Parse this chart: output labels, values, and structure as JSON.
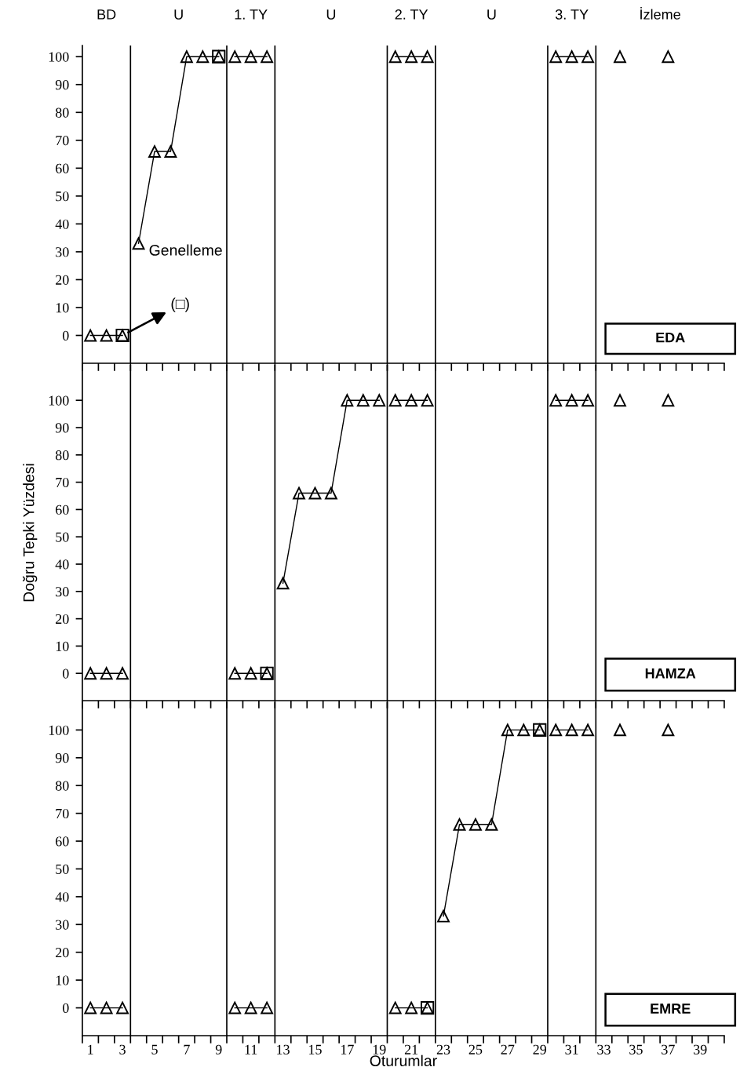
{
  "chart_data": [
    {
      "type": "line",
      "title": "EDA",
      "xlim": [
        0.5,
        40.5
      ],
      "ylim": [
        -10,
        104
      ],
      "tick_labels": "y",
      "xticks": [
        {
          "value": 0.5,
          "label": null
        },
        {
          "value": 1.5,
          "label": null
        },
        {
          "value": 2.5,
          "label": null
        },
        {
          "value": 3.5,
          "label": null
        },
        {
          "value": 4.5,
          "label": null
        },
        {
          "value": 5.5,
          "label": null
        },
        {
          "value": 6.5,
          "label": null
        },
        {
          "value": 7.5,
          "label": null
        },
        {
          "value": 8.5,
          "label": null
        },
        {
          "value": 9.5,
          "label": null
        },
        {
          "value": 10.5,
          "label": null
        },
        {
          "value": 11.5,
          "label": null
        },
        {
          "value": 12.5,
          "label": null
        },
        {
          "value": 13.5,
          "label": null
        },
        {
          "value": 14.5,
          "label": null
        },
        {
          "value": 15.5,
          "label": null
        },
        {
          "value": 16.5,
          "label": null
        },
        {
          "value": 17.5,
          "label": null
        },
        {
          "value": 18.5,
          "label": null
        },
        {
          "value": 19.5,
          "label": null
        },
        {
          "value": 20.5,
          "label": null
        },
        {
          "value": 21.5,
          "label": null
        },
        {
          "value": 22.5,
          "label": null
        },
        {
          "value": 23.5,
          "label": null
        },
        {
          "value": 24.5,
          "label": null
        },
        {
          "value": 25.5,
          "label": null
        },
        {
          "value": 26.5,
          "label": null
        },
        {
          "value": 27.5,
          "label": null
        },
        {
          "value": 28.5,
          "label": null
        },
        {
          "value": 29.5,
          "label": null
        },
        {
          "value": 30.5,
          "label": null
        },
        {
          "value": 31.5,
          "label": null
        },
        {
          "value": 32.5,
          "label": null
        },
        {
          "value": 33.5,
          "label": null
        },
        {
          "value": 34.5,
          "label": null
        },
        {
          "value": 35.5,
          "label": null
        },
        {
          "value": 36.5,
          "label": null
        },
        {
          "value": 37.5,
          "label": null
        },
        {
          "value": 38.5,
          "label": null
        },
        {
          "value": 39.5,
          "label": null
        },
        {
          "value": 40.5,
          "label": null
        }
      ],
      "yticks": [
        0,
        10,
        20,
        30,
        40,
        50,
        60,
        70,
        80,
        90,
        100
      ],
      "ref_lines": [
        {
          "axis": "x",
          "value": 3.5,
          "color": "#000000",
          "line_style": "solid"
        },
        {
          "axis": "x",
          "value": 9.5,
          "color": "#000000",
          "line_style": "solid"
        },
        {
          "axis": "x",
          "value": 12.5,
          "color": "#000000",
          "line_style": "solid"
        },
        {
          "axis": "x",
          "value": 19.5,
          "color": "#000000",
          "line_style": "solid"
        },
        {
          "axis": "x",
          "value": 22.5,
          "color": "#000000",
          "line_style": "solid"
        },
        {
          "axis": "x",
          "value": 29.5,
          "color": "#000000",
          "line_style": "solid"
        },
        {
          "axis": "x",
          "value": 32.5,
          "color": "#000000",
          "line_style": "solid"
        }
      ],
      "annotations": [
        "BD",
        "U",
        "1. TY",
        "U",
        "2. TY",
        "U",
        "3. TY",
        "İzleme",
        "Genelleme",
        {
          "text": "(□)",
          "x": 3,
          "y": 0
        }
      ],
      "series": [
        {
          "type": "line",
          "marker": "triangle",
          "color": "#000000",
          "x": [
            1,
            2,
            3
          ],
          "values": [
            0,
            0,
            0
          ]
        },
        {
          "type": "line",
          "marker": "triangle",
          "color": "#000000",
          "x": [
            4,
            5,
            6,
            7,
            8,
            9
          ],
          "values": [
            33,
            66,
            66,
            100,
            100,
            100
          ]
        },
        {
          "type": "line",
          "marker": "triangle",
          "color": "#000000",
          "x": [
            10,
            11,
            12
          ],
          "values": [
            100,
            100,
            100
          ]
        },
        {
          "type": "line",
          "marker": "triangle",
          "color": "#000000",
          "x": [
            20,
            21,
            22
          ],
          "values": [
            100,
            100,
            100
          ]
        },
        {
          "type": "line",
          "marker": "triangle",
          "color": "#000000",
          "x": [
            30,
            31,
            32
          ],
          "values": [
            100,
            100,
            100
          ]
        },
        {
          "type": "scatter",
          "marker": "triangle",
          "color": "#000000",
          "x": [
            34,
            37
          ],
          "values": [
            100,
            100
          ]
        },
        {
          "type": "scatter",
          "marker": "square",
          "color": "#000000",
          "x": [
            3,
            9
          ],
          "values": [
            0,
            100
          ]
        }
      ]
    },
    {
      "type": "line",
      "title": "HAMZA",
      "ylabel": "Doğru Tepki Yüzdesi",
      "xlim": [
        0.5,
        40.5
      ],
      "ylim": [
        -10,
        113
      ],
      "tick_labels": "y",
      "xticks": [
        {
          "value": 0.5,
          "label": null
        },
        {
          "value": 1.5,
          "label": null
        },
        {
          "value": 2.5,
          "label": null
        },
        {
          "value": 3.5,
          "label": null
        },
        {
          "value": 4.5,
          "label": null
        },
        {
          "value": 5.5,
          "label": null
        },
        {
          "value": 6.5,
          "label": null
        },
        {
          "value": 7.5,
          "label": null
        },
        {
          "value": 8.5,
          "label": null
        },
        {
          "value": 9.5,
          "label": null
        },
        {
          "value": 10.5,
          "label": null
        },
        {
          "value": 11.5,
          "label": null
        },
        {
          "value": 12.5,
          "label": null
        },
        {
          "value": 13.5,
          "label": null
        },
        {
          "value": 14.5,
          "label": null
        },
        {
          "value": 15.5,
          "label": null
        },
        {
          "value": 16.5,
          "label": null
        },
        {
          "value": 17.5,
          "label": null
        },
        {
          "value": 18.5,
          "label": null
        },
        {
          "value": 19.5,
          "label": null
        },
        {
          "value": 20.5,
          "label": null
        },
        {
          "value": 21.5,
          "label": null
        },
        {
          "value": 22.5,
          "label": null
        },
        {
          "value": 23.5,
          "label": null
        },
        {
          "value": 24.5,
          "label": null
        },
        {
          "value": 25.5,
          "label": null
        },
        {
          "value": 26.5,
          "label": null
        },
        {
          "value": 27.5,
          "label": null
        },
        {
          "value": 28.5,
          "label": null
        },
        {
          "value": 29.5,
          "label": null
        },
        {
          "value": 30.5,
          "label": null
        },
        {
          "value": 31.5,
          "label": null
        },
        {
          "value": 32.5,
          "label": null
        },
        {
          "value": 33.5,
          "label": null
        },
        {
          "value": 34.5,
          "label": null
        },
        {
          "value": 35.5,
          "label": null
        },
        {
          "value": 36.5,
          "label": null
        },
        {
          "value": 37.5,
          "label": null
        },
        {
          "value": 38.5,
          "label": null
        },
        {
          "value": 39.5,
          "label": null
        },
        {
          "value": 40.5,
          "label": null
        }
      ],
      "yticks": [
        0,
        10,
        20,
        30,
        40,
        50,
        60,
        70,
        80,
        90,
        100
      ],
      "ref_lines": [
        {
          "axis": "x",
          "value": 3.5,
          "color": "#000000",
          "line_style": "solid"
        },
        {
          "axis": "x",
          "value": 9.5,
          "color": "#000000",
          "line_style": "solid"
        },
        {
          "axis": "x",
          "value": 12.5,
          "color": "#000000",
          "line_style": "solid"
        },
        {
          "axis": "x",
          "value": 19.5,
          "color": "#000000",
          "line_style": "solid"
        },
        {
          "axis": "x",
          "value": 22.5,
          "color": "#000000",
          "line_style": "solid"
        },
        {
          "axis": "x",
          "value": 29.5,
          "color": "#000000",
          "line_style": "solid"
        },
        {
          "axis": "x",
          "value": 32.5,
          "color": "#000000",
          "line_style": "solid"
        }
      ],
      "series": [
        {
          "type": "line",
          "marker": "triangle",
          "color": "#000000",
          "x": [
            1,
            2,
            3
          ],
          "values": [
            0,
            0,
            0
          ]
        },
        {
          "type": "line",
          "marker": "triangle",
          "color": "#000000",
          "x": [
            10,
            11,
            12
          ],
          "values": [
            0,
            0,
            0
          ]
        },
        {
          "type": "line",
          "marker": "triangle",
          "color": "#000000",
          "x": [
            13,
            14,
            15,
            16,
            17,
            18,
            19
          ],
          "values": [
            33,
            66,
            66,
            66,
            100,
            100,
            100
          ]
        },
        {
          "type": "line",
          "marker": "triangle",
          "color": "#000000",
          "x": [
            20,
            21,
            22
          ],
          "values": [
            100,
            100,
            100
          ]
        },
        {
          "type": "line",
          "marker": "triangle",
          "color": "#000000",
          "x": [
            30,
            31,
            32
          ],
          "values": [
            100,
            100,
            100
          ]
        },
        {
          "type": "scatter",
          "marker": "triangle",
          "color": "#000000",
          "x": [
            34,
            37
          ],
          "values": [
            100,
            100
          ]
        },
        {
          "type": "scatter",
          "marker": "square",
          "color": "#000000",
          "x": [
            12
          ],
          "values": [
            0
          ]
        }
      ]
    },
    {
      "type": "line",
      "title": "EMRE",
      "xlabel": "Oturumlar",
      "xlim": [
        0.5,
        40.5
      ],
      "ylim": [
        -10,
        110
      ],
      "xticks": [
        {
          "value": 0.5,
          "label": null
        },
        {
          "value": 1,
          "label": "1"
        },
        {
          "value": 1.5,
          "label": null
        },
        {
          "value": 2.5,
          "label": null
        },
        {
          "value": 3,
          "label": "3"
        },
        {
          "value": 3.5,
          "label": null
        },
        {
          "value": 4.5,
          "label": null
        },
        {
          "value": 5,
          "label": "5"
        },
        {
          "value": 5.5,
          "label": null
        },
        {
          "value": 6.5,
          "label": null
        },
        {
          "value": 7,
          "label": "7"
        },
        {
          "value": 7.5,
          "label": null
        },
        {
          "value": 8.5,
          "label": null
        },
        {
          "value": 9,
          "label": "9"
        },
        {
          "value": 9.5,
          "label": null
        },
        {
          "value": 10.5,
          "label": null
        },
        {
          "value": 11,
          "label": "11"
        },
        {
          "value": 11.5,
          "label": null
        },
        {
          "value": 12.5,
          "label": null
        },
        {
          "value": 13,
          "label": "13"
        },
        {
          "value": 13.5,
          "label": null
        },
        {
          "value": 14.5,
          "label": null
        },
        {
          "value": 15,
          "label": "15"
        },
        {
          "value": 15.5,
          "label": null
        },
        {
          "value": 16.5,
          "label": null
        },
        {
          "value": 17,
          "label": "17"
        },
        {
          "value": 17.5,
          "label": null
        },
        {
          "value": 18.5,
          "label": null
        },
        {
          "value": 19,
          "label": "19"
        },
        {
          "value": 19.5,
          "label": null
        },
        {
          "value": 20.5,
          "label": null
        },
        {
          "value": 21,
          "label": "21"
        },
        {
          "value": 21.5,
          "label": null
        },
        {
          "value": 22.5,
          "label": null
        },
        {
          "value": 23,
          "label": "23"
        },
        {
          "value": 23.5,
          "label": null
        },
        {
          "value": 24.5,
          "label": null
        },
        {
          "value": 25,
          "label": "25"
        },
        {
          "value": 25.5,
          "label": null
        },
        {
          "value": 26.5,
          "label": null
        },
        {
          "value": 27,
          "label": "27"
        },
        {
          "value": 27.5,
          "label": null
        },
        {
          "value": 28.5,
          "label": null
        },
        {
          "value": 29,
          "label": "29"
        },
        {
          "value": 29.5,
          "label": null
        },
        {
          "value": 30.5,
          "label": null
        },
        {
          "value": 31,
          "label": "31"
        },
        {
          "value": 31.5,
          "label": null
        },
        {
          "value": 32.5,
          "label": null
        },
        {
          "value": 33,
          "label": "33"
        },
        {
          "value": 33.5,
          "label": null
        },
        {
          "value": 34.5,
          "label": null
        },
        {
          "value": 35,
          "label": "35"
        },
        {
          "value": 35.5,
          "label": null
        },
        {
          "value": 36.5,
          "label": null
        },
        {
          "value": 37,
          "label": "37"
        },
        {
          "value": 37.5,
          "label": null
        },
        {
          "value": 38.5,
          "label": null
        },
        {
          "value": 39,
          "label": "39"
        },
        {
          "value": 39.5,
          "label": null
        },
        {
          "value": 40.5,
          "label": null
        }
      ],
      "yticks": [
        0,
        10,
        20,
        30,
        40,
        50,
        60,
        70,
        80,
        90,
        100
      ],
      "ref_lines": [
        {
          "axis": "x",
          "value": 3.5,
          "color": "#000000",
          "line_style": "solid"
        },
        {
          "axis": "x",
          "value": 9.5,
          "color": "#000000",
          "line_style": "solid"
        },
        {
          "axis": "x",
          "value": 12.5,
          "color": "#000000",
          "line_style": "solid"
        },
        {
          "axis": "x",
          "value": 19.5,
          "color": "#000000",
          "line_style": "solid"
        },
        {
          "axis": "x",
          "value": 22.5,
          "color": "#000000",
          "line_style": "solid"
        },
        {
          "axis": "x",
          "value": 29.5,
          "color": "#000000",
          "line_style": "solid"
        },
        {
          "axis": "x",
          "value": 32.5,
          "color": "#000000",
          "line_style": "solid"
        }
      ],
      "series": [
        {
          "type": "line",
          "marker": "triangle",
          "color": "#000000",
          "x": [
            1,
            2,
            3
          ],
          "values": [
            0,
            0,
            0
          ]
        },
        {
          "type": "line",
          "marker": "triangle",
          "color": "#000000",
          "x": [
            10,
            11,
            12
          ],
          "values": [
            0,
            0,
            0
          ]
        },
        {
          "type": "line",
          "marker": "triangle",
          "color": "#000000",
          "x": [
            20,
            21,
            22
          ],
          "values": [
            0,
            0,
            0
          ]
        },
        {
          "type": "line",
          "marker": "triangle",
          "color": "#000000",
          "x": [
            23,
            24,
            25,
            26,
            27,
            28,
            29
          ],
          "values": [
            33,
            66,
            66,
            66,
            100,
            100,
            100
          ]
        },
        {
          "type": "line",
          "marker": "triangle",
          "color": "#000000",
          "x": [
            30,
            31,
            32
          ],
          "values": [
            100,
            100,
            100
          ]
        },
        {
          "type": "scatter",
          "marker": "triangle",
          "color": "#000000",
          "x": [
            34,
            37
          ],
          "values": [
            100,
            100
          ]
        },
        {
          "type": "scatter",
          "marker": "square",
          "color": "#000000",
          "x": [
            22,
            29
          ],
          "values": [
            0,
            100
          ]
        }
      ]
    }
  ]
}
